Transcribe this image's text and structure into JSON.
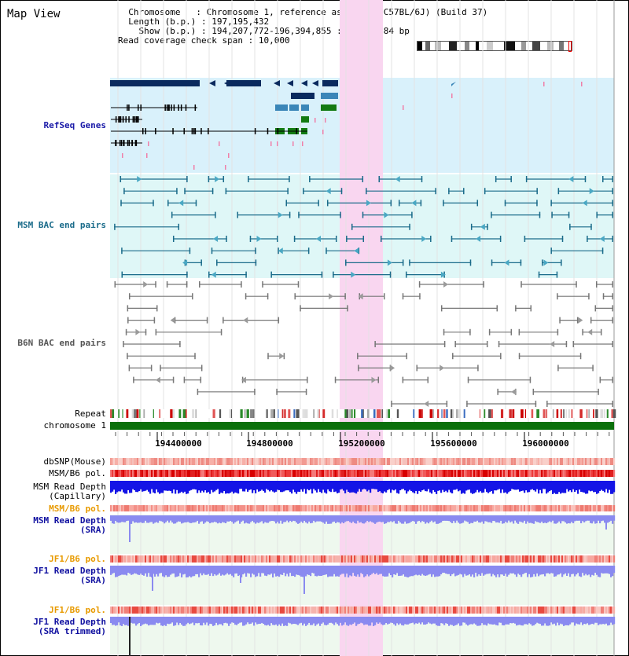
{
  "page": {
    "title": "Map View"
  },
  "info": {
    "chromosome_label": "Chromosome",
    "chromosome_value": "Chromosome 1, reference assembly (C57BL/6J) (Build 37)",
    "length_label": "Length (b.p.)",
    "length_value": "197,195,432",
    "show_label": "Show (b.p.)",
    "show_value": "194,207,772-196,394,855 : 2,187,084 bp",
    "coverage_label": "Read coverage check span",
    "coverage_value": "10,000"
  },
  "tracks": {
    "refseq": {
      "label": "RefSeq Genes",
      "color": "#1a1aa8"
    },
    "msm_bac": {
      "label": "MSM BAC end pairs",
      "color": "#1a6b8a"
    },
    "b6n_bac": {
      "label": "B6N BAC end pairs",
      "color": "#555555"
    },
    "repeat": {
      "label": "Repeat"
    },
    "chromosome": {
      "label": "chromosome 1"
    },
    "dbsnp": {
      "label": "dbSNP(Mouse)"
    },
    "msm_b6_pol_1": {
      "label": "MSM/B6 pol."
    },
    "msm_read_depth_cap": {
      "label": "MSM Read Depth\n(Capillary)"
    },
    "msm_b6_pol_2": {
      "label": "MSM/B6 pol.",
      "color": "#e89a00"
    },
    "msm_read_depth_sra": {
      "label": "MSM Read Depth\n(SRA)",
      "color": "#1010a0"
    },
    "jf1_b6_pol": {
      "label": "JF1/B6 pol.",
      "color": "#e89a00"
    },
    "jf1_read_depth_sra": {
      "label": "JF1 Read Depth\n(SRA)",
      "color": "#1010a0"
    },
    "jf1_b6_pol_2": {
      "label": "JF1/B6 pol.",
      "color": "#e89a00"
    },
    "jf1_read_depth_trim": {
      "label": "JF1 Read Depth\n(SRA trimmed)",
      "color": "#1010a0"
    }
  },
  "axis": {
    "ticks": [
      "194400000",
      "194800000",
      "195200000",
      "195600000",
      "196000000"
    ]
  },
  "colors": {
    "highlight": "#f9d6f0",
    "refseq_bg": "#d9f1fb",
    "msm_bg": "#dff7f7",
    "gene_dark": "#0a2a5e",
    "gene_mid": "#3a86b8",
    "gene_green": "#127a12",
    "msm_line": "#1a6b8a",
    "b6n_line": "#777777",
    "depth_blue": "#1414e6",
    "depth_light": "#8a8af0",
    "chrom_green": "#0b700b"
  }
}
